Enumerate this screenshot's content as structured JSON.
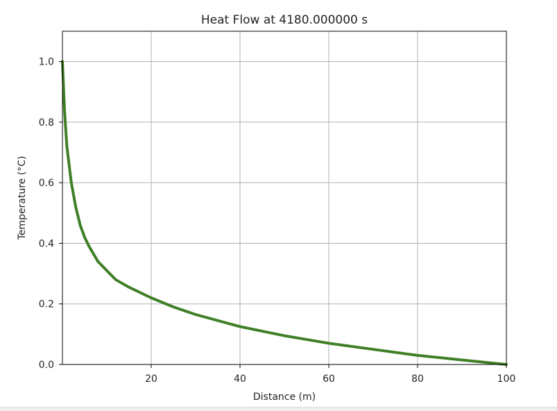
{
  "chart_data": {
    "type": "line",
    "title": "Heat Flow at 4180.000000 s",
    "xlabel": "Distance (m)",
    "ylabel": "Temperature (°C)",
    "xlim": [
      0,
      100
    ],
    "ylim": [
      0,
      1.1
    ],
    "xticks": [
      20,
      40,
      60,
      80,
      100
    ],
    "xtick_labels": [
      "20",
      "40",
      "60",
      "80",
      "100"
    ],
    "yticks": [
      0.0,
      0.2,
      0.4,
      0.6,
      0.8,
      1.0
    ],
    "ytick_labels": [
      "0.0",
      "0.2",
      "0.4",
      "0.6",
      "0.8",
      "1.0"
    ],
    "grid": true,
    "series": [
      {
        "name": "temperature",
        "color": "#3f7f26",
        "x": [
          0,
          0.5,
          1,
          2,
          3,
          4,
          5,
          6,
          8,
          10,
          12,
          15,
          20,
          25,
          30,
          40,
          50,
          60,
          70,
          80,
          90,
          100
        ],
        "y": [
          1.0,
          0.83,
          0.72,
          0.6,
          0.52,
          0.46,
          0.42,
          0.39,
          0.34,
          0.31,
          0.28,
          0.255,
          0.22,
          0.19,
          0.165,
          0.125,
          0.095,
          0.07,
          0.05,
          0.03,
          0.015,
          0.0
        ]
      }
    ]
  }
}
